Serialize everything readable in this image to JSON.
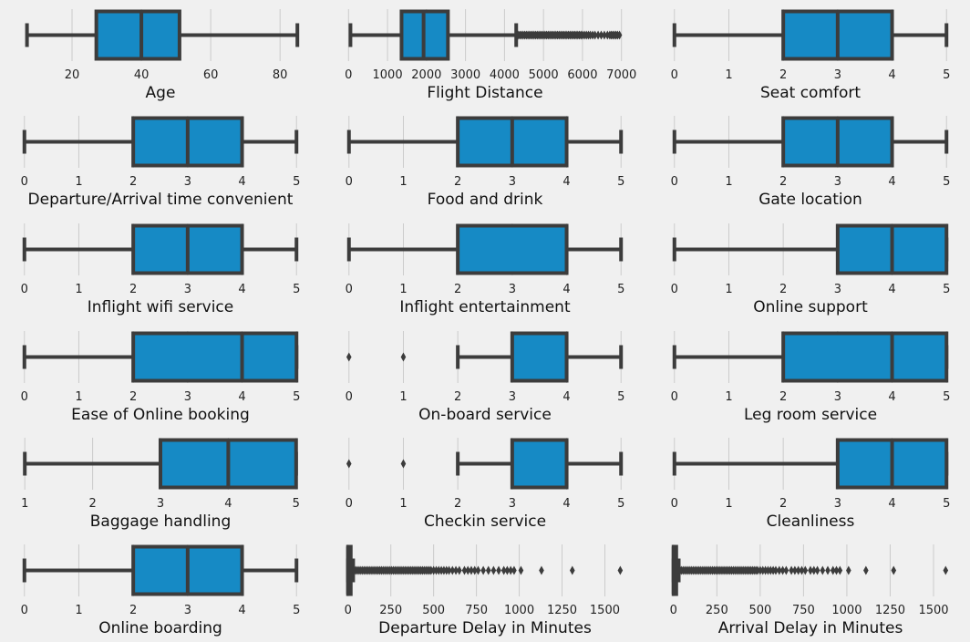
{
  "colors": {
    "background": "#f0f0f0",
    "box_fill": "#168ac5",
    "line": "#3c3c3c",
    "grid": "#cbcbcb"
  },
  "chart_data": [
    {
      "type": "box",
      "xlabel": "Age",
      "xlim": [
        5,
        86
      ],
      "ticks": [
        20,
        40,
        60,
        80
      ],
      "whisker_low": 7,
      "q1": 27,
      "median": 40,
      "q3": 51,
      "whisker_high": 85,
      "outliers": []
    },
    {
      "type": "box",
      "xlabel": "Flight Distance",
      "xlim": [
        -100,
        7100
      ],
      "ticks": [
        0,
        1000,
        2000,
        3000,
        4000,
        5000,
        6000,
        7000
      ],
      "whisker_low": 50,
      "q1": 1360,
      "median": 1925,
      "q3": 2550,
      "whisker_high": 4300,
      "outliers": [
        4320,
        4360,
        4400,
        4440,
        4480,
        4520,
        4560,
        4600,
        4640,
        4680,
        4720,
        4760,
        4800,
        4840,
        4880,
        4920,
        4960,
        5000,
        5040,
        5080,
        5120,
        5160,
        5200,
        5240,
        5280,
        5320,
        5360,
        5400,
        5440,
        5480,
        5520,
        5560,
        5600,
        5640,
        5680,
        5720,
        5760,
        5800,
        5840,
        5880,
        5920,
        5960,
        6000,
        6050,
        6100,
        6150,
        6200,
        6260,
        6320,
        6400,
        6480,
        6560,
        6640,
        6700,
        6740,
        6780,
        6820,
        6860,
        6900,
        6950
      ]
    },
    {
      "type": "box",
      "xlabel": "Seat comfort",
      "xlim": [
        -0.08,
        5.08
      ],
      "ticks": [
        0,
        1,
        2,
        3,
        4,
        5
      ],
      "whisker_low": 0,
      "q1": 2,
      "median": 3,
      "q3": 4,
      "whisker_high": 5,
      "outliers": []
    },
    {
      "type": "box",
      "xlabel": "Departure/Arrival time convenient",
      "xlim": [
        -0.08,
        5.08
      ],
      "ticks": [
        0,
        1,
        2,
        3,
        4,
        5
      ],
      "whisker_low": 0,
      "q1": 2,
      "median": 3,
      "q3": 4,
      "whisker_high": 5,
      "outliers": []
    },
    {
      "type": "box",
      "xlabel": "Food and drink",
      "xlim": [
        -0.08,
        5.08
      ],
      "ticks": [
        0,
        1,
        2,
        3,
        4,
        5
      ],
      "whisker_low": 0,
      "q1": 2,
      "median": 3,
      "q3": 4,
      "whisker_high": 5,
      "outliers": []
    },
    {
      "type": "box",
      "xlabel": "Gate location",
      "xlim": [
        -0.08,
        5.08
      ],
      "ticks": [
        0,
        1,
        2,
        3,
        4,
        5
      ],
      "whisker_low": 0,
      "q1": 2,
      "median": 3,
      "q3": 4,
      "whisker_high": 5,
      "outliers": []
    },
    {
      "type": "box",
      "xlabel": "Inflight wifi service",
      "xlim": [
        -0.08,
        5.08
      ],
      "ticks": [
        0,
        1,
        2,
        3,
        4,
        5
      ],
      "whisker_low": 0,
      "q1": 2,
      "median": 3,
      "q3": 4,
      "whisker_high": 5,
      "outliers": []
    },
    {
      "type": "box",
      "xlabel": "Inflight entertainment",
      "xlim": [
        -0.08,
        5.08
      ],
      "ticks": [
        0,
        1,
        2,
        3,
        4,
        5
      ],
      "whisker_low": 0,
      "q1": 2,
      "median": 4,
      "q3": 4,
      "whisker_high": 5,
      "outliers": []
    },
    {
      "type": "box",
      "xlabel": "Online support",
      "xlim": [
        -0.08,
        5.08
      ],
      "ticks": [
        0,
        1,
        2,
        3,
        4,
        5
      ],
      "whisker_low": 0,
      "q1": 3,
      "median": 4,
      "q3": 5,
      "whisker_high": 5,
      "outliers": []
    },
    {
      "type": "box",
      "xlabel": "Ease of Online booking",
      "xlim": [
        -0.08,
        5.08
      ],
      "ticks": [
        0,
        1,
        2,
        3,
        4,
        5
      ],
      "whisker_low": 0,
      "q1": 2,
      "median": 4,
      "q3": 5,
      "whisker_high": 5,
      "outliers": []
    },
    {
      "type": "box",
      "xlabel": "On-board service",
      "xlim": [
        -0.08,
        5.08
      ],
      "ticks": [
        0,
        1,
        2,
        3,
        4,
        5
      ],
      "whisker_low": 2,
      "q1": 3,
      "median": 4,
      "q3": 4,
      "whisker_high": 5,
      "outliers": [
        0,
        1
      ]
    },
    {
      "type": "box",
      "xlabel": "Leg room service",
      "xlim": [
        -0.08,
        5.08
      ],
      "ticks": [
        0,
        1,
        2,
        3,
        4,
        5
      ],
      "whisker_low": 0,
      "q1": 2,
      "median": 4,
      "q3": 5,
      "whisker_high": 5,
      "outliers": []
    },
    {
      "type": "box",
      "xlabel": "Baggage handling",
      "xlim": [
        0.93,
        5.07
      ],
      "ticks": [
        1,
        2,
        3,
        4,
        5
      ],
      "whisker_low": 1,
      "q1": 3,
      "median": 4,
      "q3": 5,
      "whisker_high": 5,
      "outliers": []
    },
    {
      "type": "box",
      "xlabel": "Checkin service",
      "xlim": [
        -0.08,
        5.08
      ],
      "ticks": [
        0,
        1,
        2,
        3,
        4,
        5
      ],
      "whisker_low": 2,
      "q1": 3,
      "median": 4,
      "q3": 4,
      "whisker_high": 5,
      "outliers": [
        0,
        1
      ]
    },
    {
      "type": "box",
      "xlabel": "Cleanliness",
      "xlim": [
        -0.08,
        5.08
      ],
      "ticks": [
        0,
        1,
        2,
        3,
        4,
        5
      ],
      "whisker_low": 0,
      "q1": 3,
      "median": 4,
      "q3": 5,
      "whisker_high": 5,
      "outliers": []
    },
    {
      "type": "box",
      "xlabel": "Online boarding",
      "xlim": [
        -0.08,
        5.08
      ],
      "ticks": [
        0,
        1,
        2,
        3,
        4,
        5
      ],
      "whisker_low": 0,
      "q1": 2,
      "median": 3,
      "q3": 4,
      "whisker_high": 5,
      "outliers": []
    },
    {
      "type": "box",
      "xlabel": "Departure Delay in Minutes",
      "xlim": [
        -20,
        1620
      ],
      "ticks": [
        0,
        250,
        500,
        750,
        1000,
        1250,
        1500
      ],
      "whisker_low": 0,
      "q1": 0,
      "median": 0,
      "q3": 12,
      "whisker_high": 30,
      "outliers": [
        35,
        45,
        55,
        65,
        75,
        85,
        95,
        105,
        115,
        125,
        135,
        145,
        155,
        165,
        175,
        185,
        195,
        205,
        215,
        225,
        235,
        245,
        255,
        265,
        275,
        285,
        295,
        305,
        315,
        325,
        335,
        345,
        355,
        365,
        375,
        385,
        395,
        405,
        415,
        425,
        435,
        445,
        455,
        465,
        475,
        485,
        500,
        515,
        530,
        545,
        560,
        575,
        590,
        610,
        630,
        650,
        680,
        700,
        720,
        740,
        760,
        790,
        820,
        850,
        880,
        910,
        930,
        950,
        970,
        1010,
        1130,
        1310,
        1590
      ]
    },
    {
      "type": "box",
      "xlabel": "Arrival Delay in Minutes",
      "xlim": [
        -20,
        1600
      ],
      "ticks": [
        0,
        250,
        500,
        750,
        1000,
        1250,
        1500
      ],
      "whisker_low": 0,
      "q1": 0,
      "median": 0,
      "q3": 12,
      "whisker_high": 30,
      "outliers": [
        35,
        45,
        55,
        65,
        75,
        85,
        95,
        105,
        115,
        125,
        135,
        145,
        155,
        165,
        175,
        185,
        195,
        205,
        215,
        225,
        235,
        245,
        255,
        265,
        275,
        285,
        295,
        305,
        315,
        325,
        335,
        345,
        355,
        365,
        375,
        385,
        395,
        405,
        415,
        425,
        435,
        445,
        455,
        465,
        475,
        485,
        500,
        515,
        530,
        545,
        560,
        575,
        590,
        610,
        630,
        650,
        680,
        700,
        720,
        740,
        760,
        790,
        810,
        830,
        860,
        890,
        920,
        940,
        960,
        1010,
        1110,
        1270,
        1570
      ]
    }
  ]
}
